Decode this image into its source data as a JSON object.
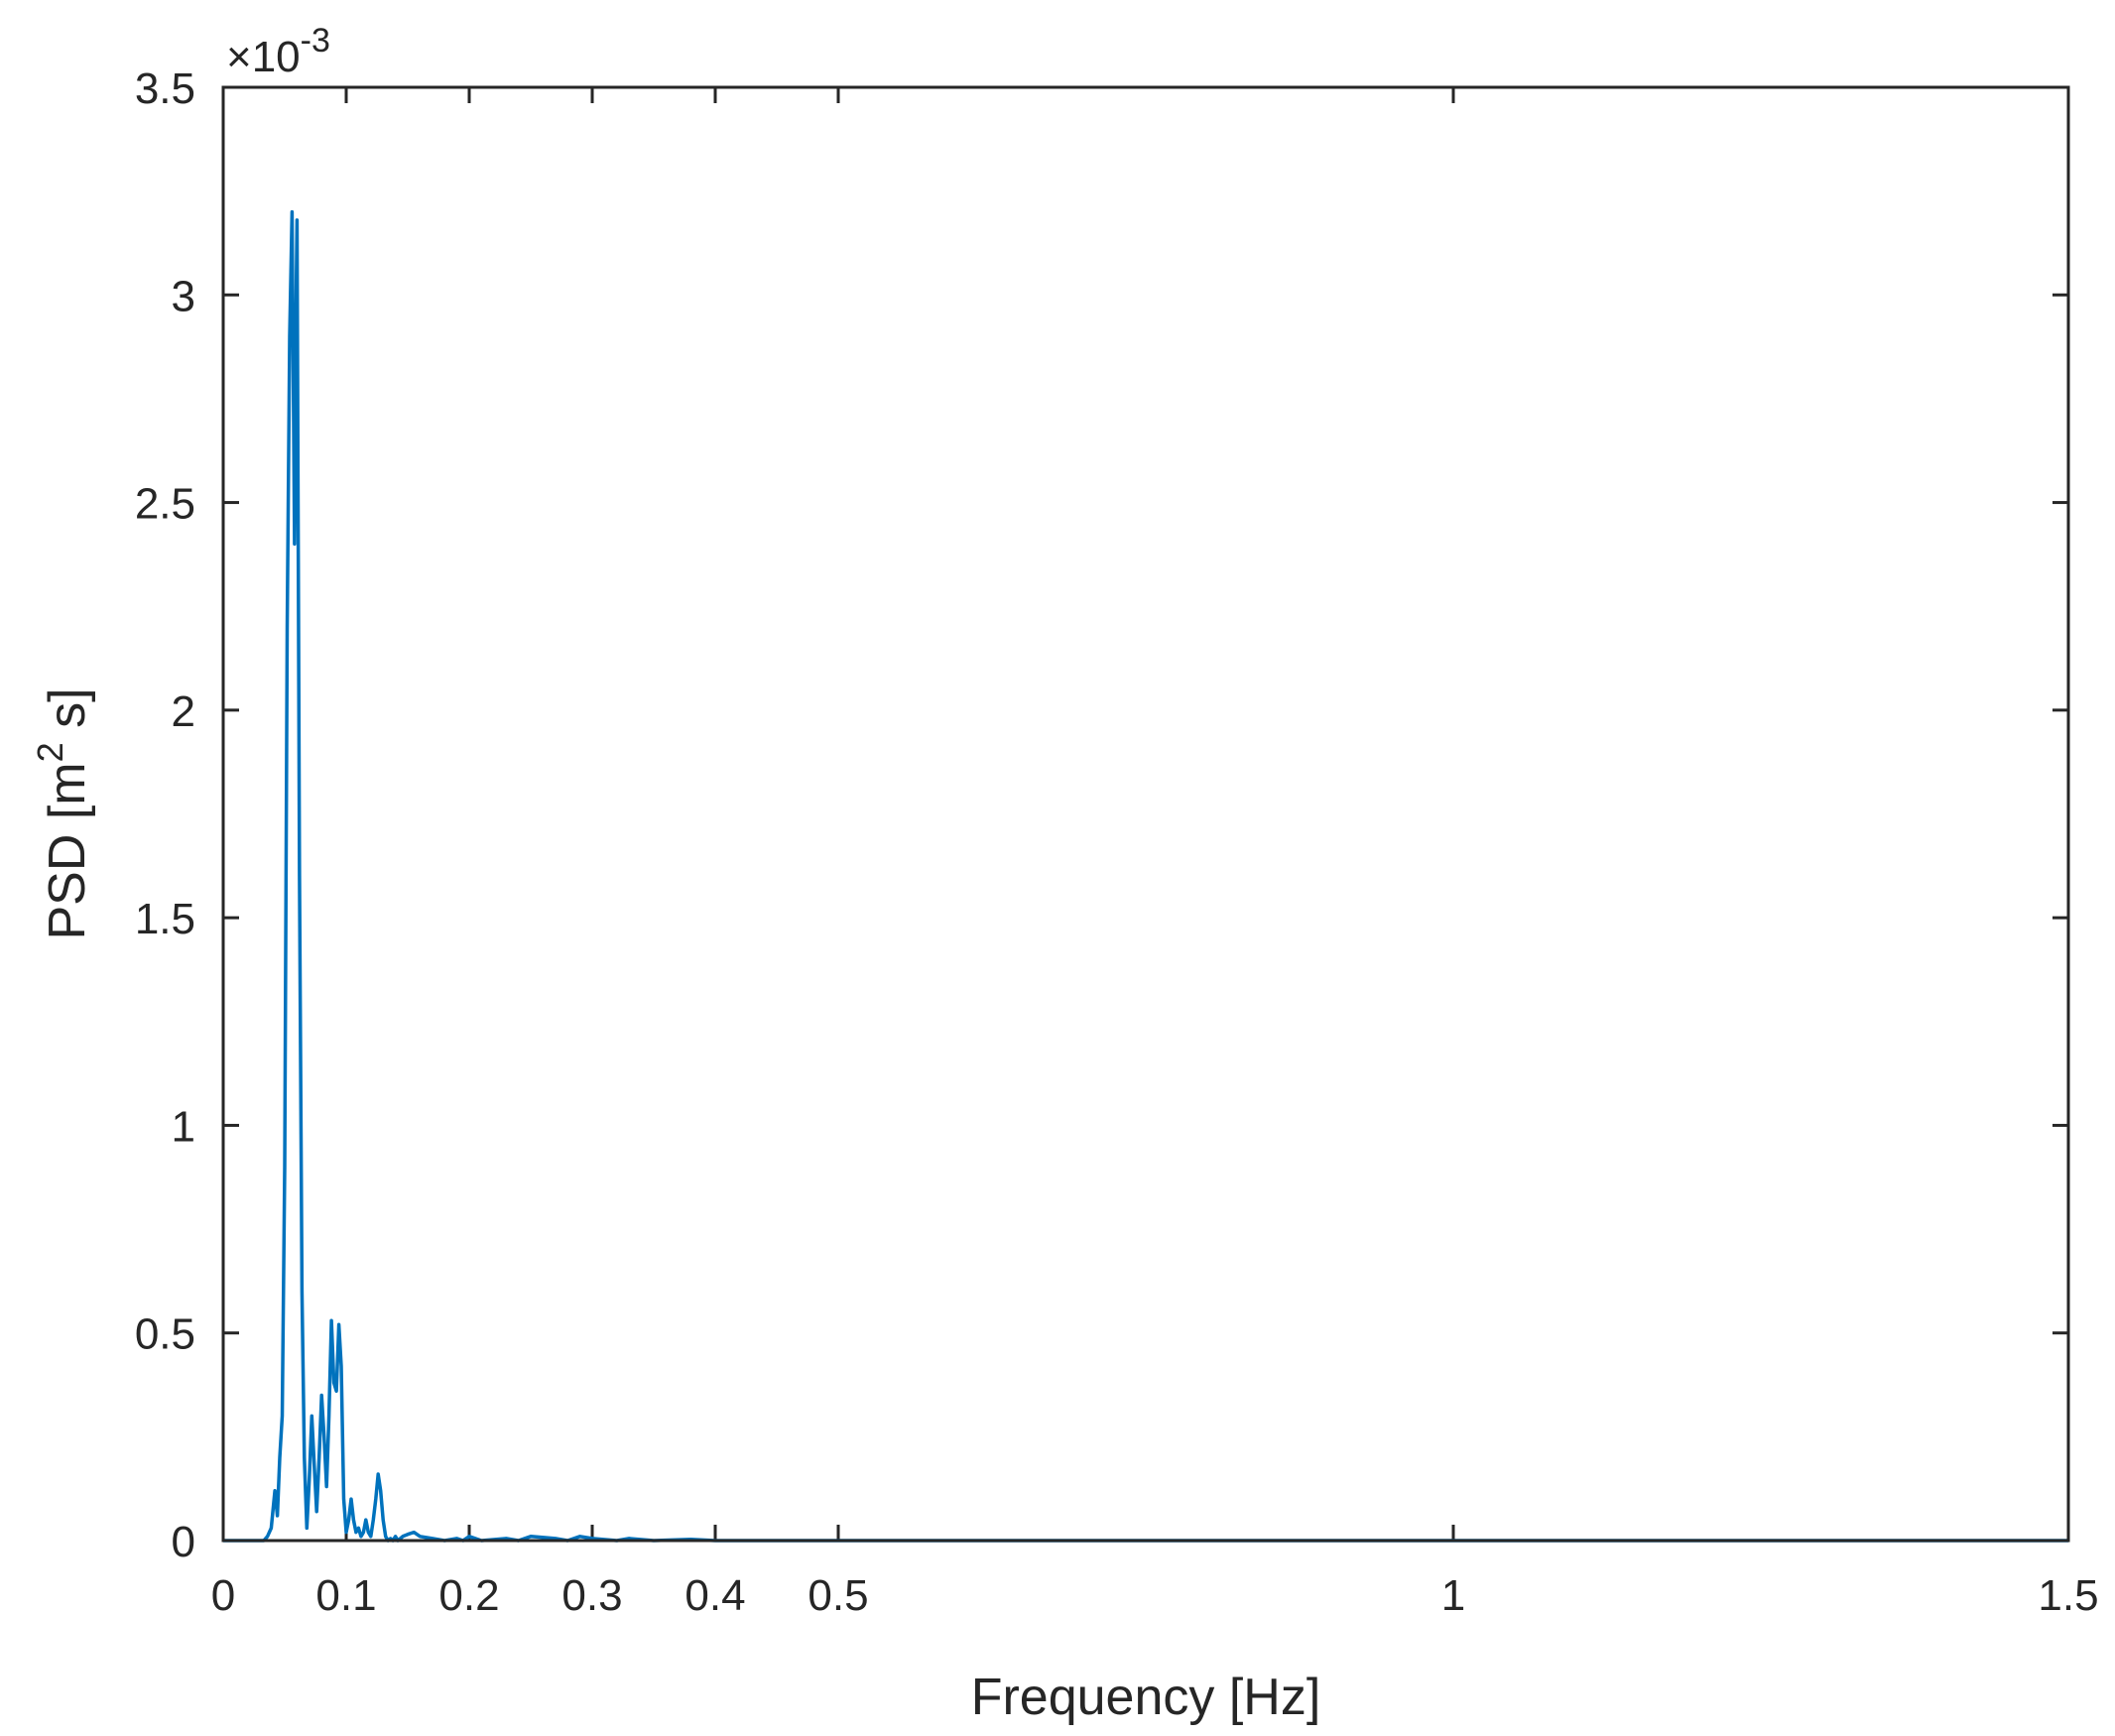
{
  "chart_data": {
    "type": "line",
    "xlabel": "Frequency [Hz]",
    "ylabel_main": "PSD [m",
    "ylabel_sup": "2",
    "ylabel_tail": " s]",
    "y_exponent_base": "×10",
    "y_exponent_power": "-3",
    "xlim": [
      0,
      1.5
    ],
    "ylim": [
      0,
      3.5
    ],
    "x_ticks": [
      0,
      0.1,
      0.2,
      0.3,
      0.4,
      0.5,
      1,
      1.5
    ],
    "x_tick_labels": [
      "0",
      "0.1",
      "0.2",
      "0.3",
      "0.4",
      "0.5",
      "1",
      "1.5"
    ],
    "y_ticks": [
      0,
      0.5,
      1,
      1.5,
      2,
      2.5,
      3,
      3.5
    ],
    "y_tick_labels": [
      "0",
      "0.5",
      "1",
      "1.5",
      "2",
      "2.5",
      "3",
      "3.5"
    ],
    "grid": false,
    "line_color": "#0072BD",
    "series": [
      {
        "x": [
          0,
          0.033,
          0.036,
          0.039,
          0.042,
          0.044,
          0.046,
          0.048,
          0.05,
          0.052,
          0.054,
          0.056,
          0.058,
          0.0595,
          0.06,
          0.0605,
          0.062,
          0.064,
          0.066,
          0.068,
          0.07,
          0.072,
          0.074,
          0.076,
          0.078,
          0.08,
          0.082,
          0.084,
          0.086,
          0.088,
          0.09,
          0.092,
          0.094,
          0.096,
          0.098,
          0.1,
          0.102,
          0.104,
          0.106,
          0.108,
          0.11,
          0.112,
          0.114,
          0.116,
          0.118,
          0.12,
          0.122,
          0.124,
          0.126,
          0.128,
          0.13,
          0.132,
          0.134,
          0.136,
          0.138,
          0.14,
          0.142,
          0.144,
          0.146,
          0.15,
          0.155,
          0.16,
          0.17,
          0.18,
          0.19,
          0.195,
          0.2,
          0.21,
          0.23,
          0.24,
          0.25,
          0.27,
          0.28,
          0.29,
          0.3,
          0.32,
          0.33,
          0.35,
          0.38,
          0.4,
          0.45,
          0.5,
          1.0,
          1.5
        ],
        "y": [
          0,
          0,
          0.01,
          0.03,
          0.12,
          0.06,
          0.2,
          0.3,
          0.9,
          2.2,
          2.9,
          3.2,
          2.4,
          3.05,
          3.18,
          2.8,
          1.6,
          0.6,
          0.2,
          0.03,
          0.15,
          0.3,
          0.18,
          0.07,
          0.2,
          0.35,
          0.25,
          0.13,
          0.3,
          0.53,
          0.38,
          0.36,
          0.52,
          0.42,
          0.1,
          0.02,
          0.05,
          0.1,
          0.05,
          0.02,
          0.03,
          0.01,
          0.02,
          0.05,
          0.02,
          0.01,
          0.05,
          0.1,
          0.16,
          0.12,
          0.05,
          0.01,
          0.0,
          0.005,
          0.0,
          0.01,
          0.0,
          0.005,
          0.01,
          0.015,
          0.02,
          0.01,
          0.005,
          0.0,
          0.005,
          0.0,
          0.01,
          0.0,
          0.005,
          0.0,
          0.01,
          0.005,
          0.0,
          0.01,
          0.005,
          0.0,
          0.005,
          0.0,
          0.003,
          0.0,
          0.0,
          0.0,
          0.0,
          0.0
        ]
      }
    ]
  }
}
